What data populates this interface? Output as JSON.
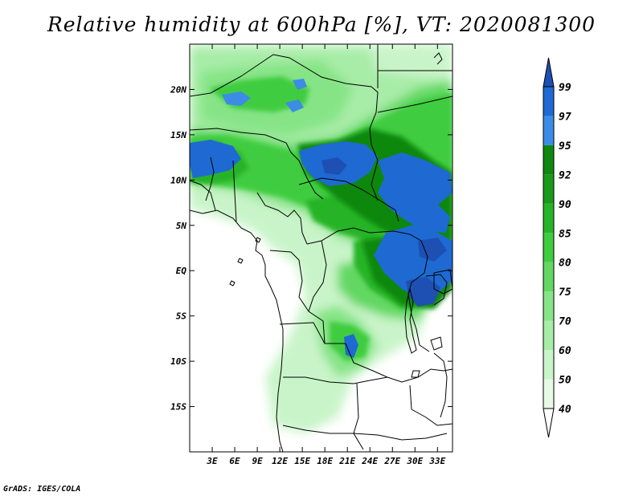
{
  "title": "Relative humidity at 600hPa [%], VT: 2020081300",
  "credit": "GrADS: IGES/COLA",
  "map": {
    "lon_range": [
      0,
      35
    ],
    "lat_range": [
      -20,
      25
    ],
    "lon_ticks": [
      {
        "value": 3,
        "label": "3E"
      },
      {
        "value": 6,
        "label": "6E"
      },
      {
        "value": 9,
        "label": "9E"
      },
      {
        "value": 12,
        "label": "12E"
      },
      {
        "value": 15,
        "label": "15E"
      },
      {
        "value": 18,
        "label": "18E"
      },
      {
        "value": 21,
        "label": "21E"
      },
      {
        "value": 24,
        "label": "24E"
      },
      {
        "value": 27,
        "label": "27E"
      },
      {
        "value": 30,
        "label": "30E"
      },
      {
        "value": 33,
        "label": "33E"
      }
    ],
    "lat_ticks": [
      {
        "value": 20,
        "label": "20N"
      },
      {
        "value": 15,
        "label": "15N"
      },
      {
        "value": 10,
        "label": "10N"
      },
      {
        "value": 5,
        "label": "5N"
      },
      {
        "value": 0,
        "label": "EQ"
      },
      {
        "value": -5,
        "label": "5S"
      },
      {
        "value": -10,
        "label": "10S"
      },
      {
        "value": -15,
        "label": "15S"
      }
    ]
  },
  "colorbar": {
    "levels": [
      {
        "label": "40",
        "color": "#e6fae6"
      },
      {
        "label": "50",
        "color": "#c9f4c9"
      },
      {
        "label": "60",
        "color": "#a7eca7"
      },
      {
        "label": "70",
        "color": "#86e486"
      },
      {
        "label": "75",
        "color": "#62d862"
      },
      {
        "label": "80",
        "color": "#3fcc3f"
      },
      {
        "label": "85",
        "color": "#28b428"
      },
      {
        "label": "90",
        "color": "#1a9a1a"
      },
      {
        "label": "92",
        "color": "#108810"
      },
      {
        "label": "95",
        "color": "#3c8ce6"
      },
      {
        "label": "97",
        "color": "#1e6ad2"
      },
      {
        "label": "99",
        "color": "#1e50b4"
      }
    ]
  }
}
